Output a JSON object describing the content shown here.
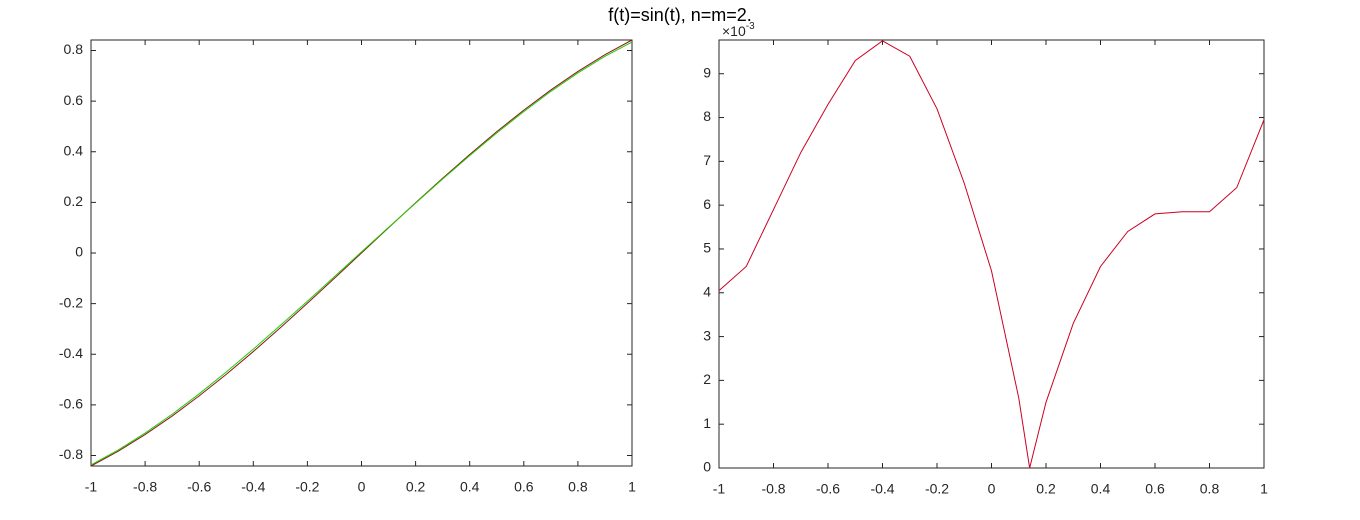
{
  "suptitle": "f(t)=sin(t), n=m=2.",
  "chart_data": [
    {
      "type": "line",
      "x": [
        -1,
        -0.9,
        -0.8,
        -0.7,
        -0.6,
        -0.5,
        -0.4,
        -0.3,
        -0.2,
        -0.1,
        0,
        0.1,
        0.2,
        0.3,
        0.4,
        0.5,
        0.6,
        0.7,
        0.8,
        0.9,
        1
      ],
      "series": [
        {
          "color": "#8b1a1a",
          "values": [
            -0.8415,
            -0.7833,
            -0.7174,
            -0.6442,
            -0.5646,
            -0.4794,
            -0.3894,
            -0.2955,
            -0.1987,
            -0.0998,
            0,
            0.0998,
            0.1987,
            0.2955,
            0.3894,
            0.4794,
            0.5646,
            0.6442,
            0.7174,
            0.7833,
            0.8415
          ]
        },
        {
          "color": "#22cc00",
          "values": [
            -0.8374,
            -0.7787,
            -0.7115,
            -0.637,
            -0.5563,
            -0.4701,
            -0.3797,
            -0.2861,
            -0.1905,
            -0.0933,
            0.0045,
            0.1014,
            0.1972,
            0.2922,
            0.3848,
            0.474,
            0.5588,
            0.6384,
            0.7115,
            0.7769,
            0.8335
          ]
        }
      ],
      "xlim": [
        -1,
        1
      ],
      "ylim": [
        -0.8415,
        0.8415
      ],
      "xticks": [
        -1,
        -0.8,
        -0.6,
        -0.4,
        -0.2,
        0,
        0.2,
        0.4,
        0.6,
        0.8,
        1
      ],
      "yticks": [
        -0.8,
        -0.6,
        -0.4,
        -0.2,
        0,
        0.2,
        0.4,
        0.6,
        0.8
      ]
    },
    {
      "type": "line",
      "x": [
        -1,
        -0.9,
        -0.8,
        -0.7,
        -0.6,
        -0.5,
        -0.4,
        -0.3,
        -0.2,
        -0.1,
        0,
        0.1,
        0.14,
        0.2,
        0.3,
        0.4,
        0.5,
        0.6,
        0.7,
        0.8,
        0.9,
        1
      ],
      "series": [
        {
          "color": "#cc0022",
          "values": [
            4.05,
            4.6,
            5.9,
            7.2,
            8.3,
            9.3,
            9.75,
            9.4,
            8.2,
            6.5,
            4.5,
            1.6,
            0,
            1.5,
            3.3,
            4.6,
            5.4,
            5.8,
            5.85,
            5.85,
            6.4,
            7.95
          ]
        }
      ],
      "y_multiplier": {
        "base": "×10",
        "exponent": "-3"
      },
      "xlim": [
        -1,
        1
      ],
      "ylim": [
        0,
        9.77
      ],
      "xticks": [
        -1,
        -0.8,
        -0.6,
        -0.4,
        -0.2,
        0,
        0.2,
        0.4,
        0.6,
        0.8,
        1
      ],
      "yticks": [
        0,
        1,
        2,
        3,
        4,
        5,
        6,
        7,
        8,
        9
      ]
    }
  ]
}
